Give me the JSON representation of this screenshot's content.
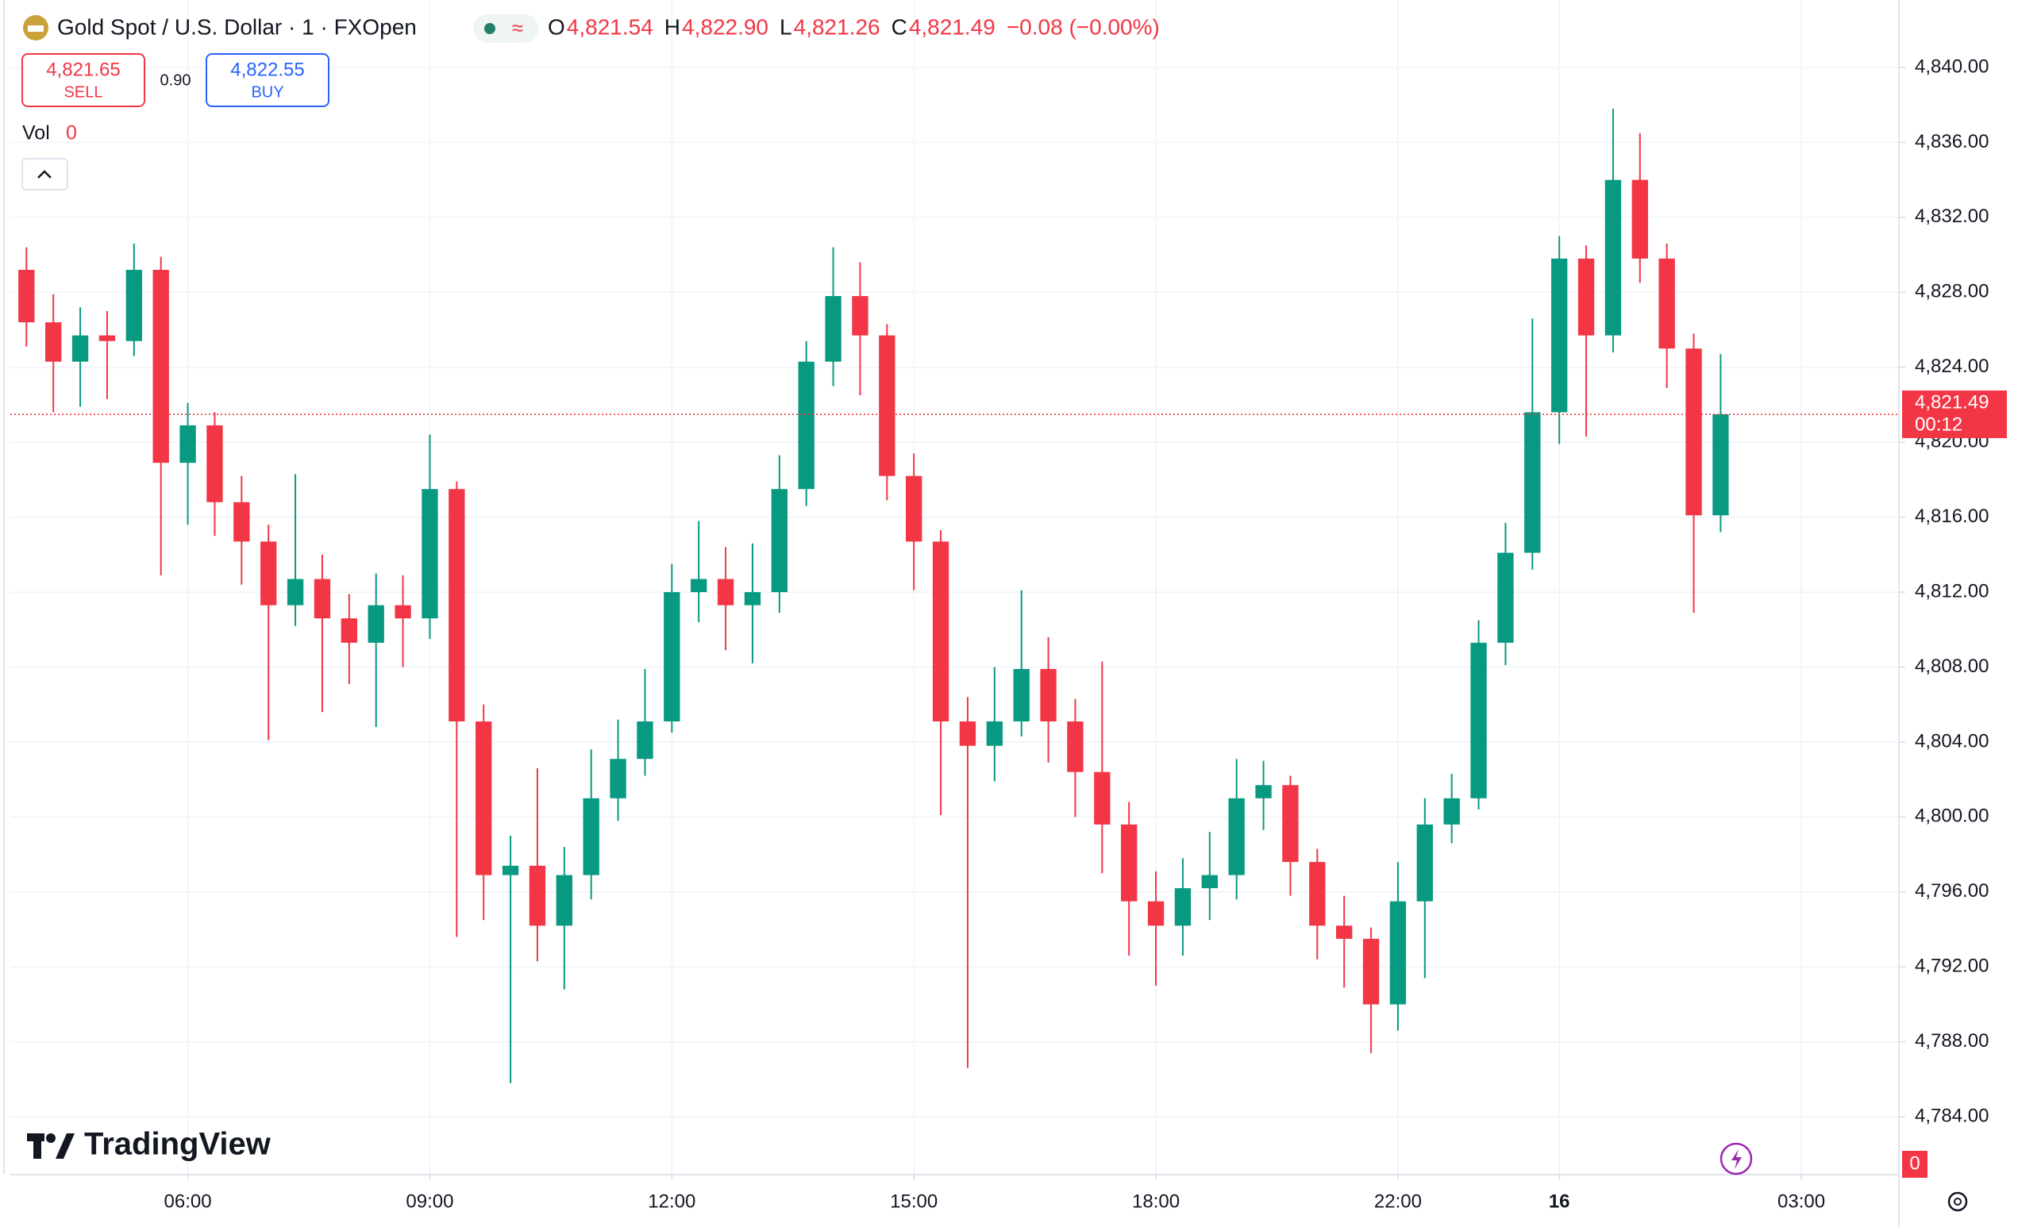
{
  "header": {
    "title": "Gold Spot / U.S. Dollar · 1 · FXOpen",
    "ohlc": [
      {
        "key": "O",
        "value": "4,821.54"
      },
      {
        "key": "H",
        "value": "4,822.90"
      },
      {
        "key": "L",
        "value": "4,821.26"
      },
      {
        "key": "C",
        "value": "4,821.49"
      }
    ],
    "change": "−0.08 (−0.00%)",
    "sell": {
      "price": "4,821.65",
      "label": "SELL"
    },
    "spread": "0.90",
    "buy": {
      "price": "4,822.55",
      "label": "BUY"
    },
    "volume": {
      "label": "Vol",
      "value": "0"
    },
    "watermark": "TradingView"
  },
  "chart_data": {
    "type": "candlestick",
    "up_color": "#089981",
    "down_color": "#f23645",
    "grid": true,
    "x": [
      -120,
      -100,
      -80,
      -60,
      -40,
      -20,
      0,
      20,
      40,
      60,
      80,
      100,
      120,
      140,
      160,
      180,
      200,
      220,
      240,
      260,
      280,
      300,
      320,
      340,
      360,
      380,
      400,
      420,
      440,
      460,
      480,
      500,
      520,
      540,
      560,
      580,
      600,
      620,
      640,
      660,
      680,
      700,
      720,
      740,
      760,
      780,
      800,
      820,
      840,
      860,
      880,
      900,
      920,
      940,
      960,
      980,
      1000,
      1020,
      1040,
      1060,
      1080,
      1100,
      1120,
      1140
    ],
    "open": [
      4829.2,
      4826.4,
      4824.3,
      4825.7,
      4825.4,
      4829.2,
      4818.9,
      4820.9,
      4816.8,
      4814.7,
      4811.3,
      4812.7,
      4810.6,
      4809.3,
      4811.3,
      4810.6,
      4817.5,
      4805.1,
      4796.9,
      4797.4,
      4794.2,
      4796.9,
      4801.0,
      4803.1,
      4805.1,
      4812.0,
      4812.7,
      4811.3,
      4812.0,
      4817.5,
      4824.3,
      4827.8,
      4825.7,
      4818.2,
      4814.7,
      4805.1,
      4803.8,
      4805.1,
      4807.9,
      4805.1,
      4802.4,
      4799.6,
      4795.5,
      4794.2,
      4796.2,
      4796.9,
      4801.0,
      4801.7,
      4797.6,
      4794.2,
      4793.5,
      4790.0,
      4795.5,
      4799.6,
      4801.0,
      4809.3,
      4814.1,
      4821.6,
      4829.8,
      4825.7,
      4834.0,
      4829.8,
      4825.0,
      4816.1
    ],
    "high": [
      4830.4,
      4827.9,
      4827.2,
      4827.0,
      4830.6,
      4829.9,
      4822.1,
      4821.6,
      4818.2,
      4815.6,
      4818.3,
      4814.0,
      4811.9,
      4813.0,
      4812.9,
      4820.4,
      4817.9,
      4806.0,
      4799.0,
      4802.6,
      4798.4,
      4803.6,
      4805.2,
      4807.9,
      4813.5,
      4815.8,
      4814.4,
      4814.6,
      4819.3,
      4825.4,
      4830.4,
      4829.6,
      4826.3,
      4819.4,
      4815.3,
      4806.4,
      4808.0,
      4812.1,
      4809.6,
      4806.3,
      4808.3,
      4800.8,
      4797.1,
      4797.8,
      4799.2,
      4803.1,
      4803.0,
      4802.2,
      4798.3,
      4795.8,
      4794.1,
      4797.6,
      4801.0,
      4802.3,
      4810.5,
      4815.7,
      4826.6,
      4831.0,
      4830.5,
      4837.8,
      4836.5,
      4830.6,
      4825.8,
      4824.7
    ],
    "low": [
      4825.1,
      4821.6,
      4821.9,
      4822.3,
      4824.6,
      4812.9,
      4815.6,
      4815.0,
      4812.4,
      4804.1,
      4810.2,
      4805.6,
      4807.1,
      4804.8,
      4808.0,
      4809.5,
      4793.6,
      4794.5,
      4785.8,
      4792.3,
      4790.8,
      4795.6,
      4799.8,
      4802.2,
      4804.5,
      4810.4,
      4808.9,
      4808.2,
      4810.9,
      4816.6,
      4823.0,
      4822.5,
      4816.9,
      4812.1,
      4800.1,
      4786.6,
      4801.9,
      4804.3,
      4802.9,
      4800.0,
      4797.0,
      4792.6,
      4791.0,
      4792.6,
      4794.5,
      4795.6,
      4799.3,
      4795.8,
      4792.4,
      4790.9,
      4787.4,
      4788.6,
      4791.4,
      4798.6,
      4800.4,
      4808.1,
      4813.2,
      4819.9,
      4820.3,
      4824.8,
      4828.5,
      4822.9,
      4810.9,
      4815.2
    ],
    "close": [
      4826.4,
      4824.3,
      4825.7,
      4825.4,
      4829.2,
      4818.9,
      4820.9,
      4816.8,
      4814.7,
      4811.3,
      4812.7,
      4810.6,
      4809.3,
      4811.3,
      4810.6,
      4817.5,
      4805.1,
      4796.9,
      4797.4,
      4794.2,
      4796.9,
      4801.0,
      4803.1,
      4805.1,
      4812.0,
      4812.7,
      4811.3,
      4812.0,
      4817.5,
      4824.3,
      4827.8,
      4825.7,
      4818.2,
      4814.7,
      4805.1,
      4803.8,
      4805.1,
      4807.9,
      4805.1,
      4802.4,
      4799.6,
      4795.5,
      4794.2,
      4796.2,
      4796.9,
      4801.0,
      4801.7,
      4797.6,
      4794.2,
      4793.5,
      4790.0,
      4795.5,
      4799.6,
      4801.0,
      4809.3,
      4814.1,
      4821.6,
      4829.8,
      4825.7,
      4834.0,
      4829.8,
      4825.0,
      4816.1,
      4821.49
    ],
    "last": {
      "value": 4821.49,
      "label": "4,821.49",
      "countdown": "00:12"
    },
    "volume_tag": "0",
    "xlim": [
      -132,
      1272
    ],
    "xticks": [
      {
        "value": 0,
        "label": "06:00"
      },
      {
        "value": 180,
        "label": "09:00"
      },
      {
        "value": 360,
        "label": "12:00"
      },
      {
        "value": 540,
        "label": "15:00"
      },
      {
        "value": 720,
        "label": "18:00"
      },
      {
        "value": 900,
        "label": "22:00"
      },
      {
        "value": 1020,
        "label": "16"
      },
      {
        "value": 1200,
        "label": "03:00"
      }
    ],
    "ylim": [
      4781,
      4843.6
    ],
    "yticks": [
      {
        "value": 4784,
        "label": "4,784.00"
      },
      {
        "value": 4788,
        "label": "4,788.00"
      },
      {
        "value": 4792,
        "label": "4,792.00"
      },
      {
        "value": 4796,
        "label": "4,796.00"
      },
      {
        "value": 4800,
        "label": "4,800.00"
      },
      {
        "value": 4804,
        "label": "4,804.00"
      },
      {
        "value": 4808,
        "label": "4,808.00"
      },
      {
        "value": 4812,
        "label": "4,812.00"
      },
      {
        "value": 4816,
        "label": "4,816.00"
      },
      {
        "value": 4820,
        "label": "4,820.00"
      },
      {
        "value": 4824,
        "label": "4,824.00"
      },
      {
        "value": 4828,
        "label": "4,828.00"
      },
      {
        "value": 4832,
        "label": "4,832.00"
      },
      {
        "value": 4836,
        "label": "4,836.00"
      },
      {
        "value": 4840,
        "label": "4,840.00"
      }
    ]
  }
}
